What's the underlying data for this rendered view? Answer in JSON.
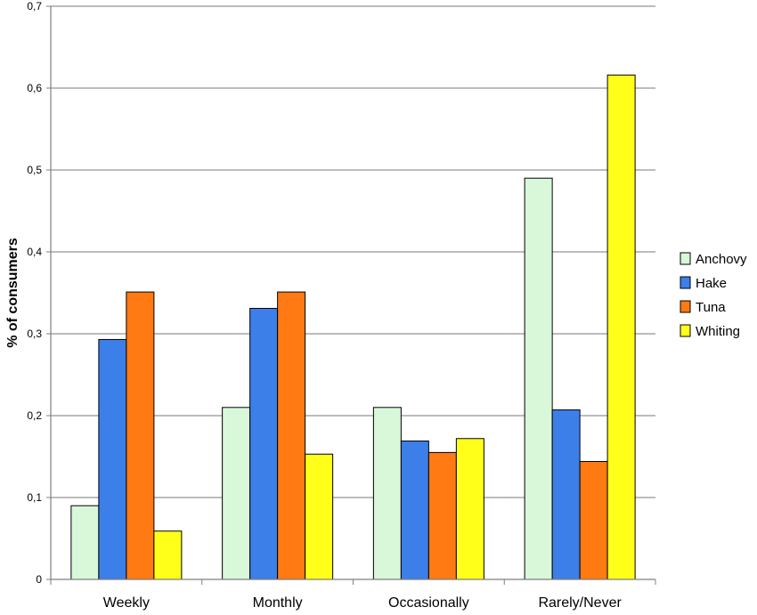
{
  "chart_data": {
    "type": "bar",
    "title": "",
    "xlabel": "",
    "ylabel": "% of consumers",
    "ylim": [
      0,
      0.7
    ],
    "yticks": [
      "0",
      "0,1",
      "0,2",
      "0,3",
      "0,4",
      "0,5",
      "0,6",
      "0,7"
    ],
    "grid": true,
    "legend_position": "right",
    "categories": [
      "Weekly",
      "Monthly",
      "Occasionally",
      "Rarely/Never"
    ],
    "series": [
      {
        "name": "Anchovy",
        "color": "#d9f7d9",
        "values": [
          0.09,
          0.21,
          0.21,
          0.49
        ]
      },
      {
        "name": "Hake",
        "color": "#3d7fe8",
        "values": [
          0.293,
          0.331,
          0.169,
          0.207
        ]
      },
      {
        "name": "Tuna",
        "color": "#ff7a12",
        "values": [
          0.351,
          0.351,
          0.155,
          0.144
        ]
      },
      {
        "name": "Whiting",
        "color": "#ffff1a",
        "values": [
          0.059,
          0.153,
          0.172,
          0.616
        ]
      }
    ]
  }
}
